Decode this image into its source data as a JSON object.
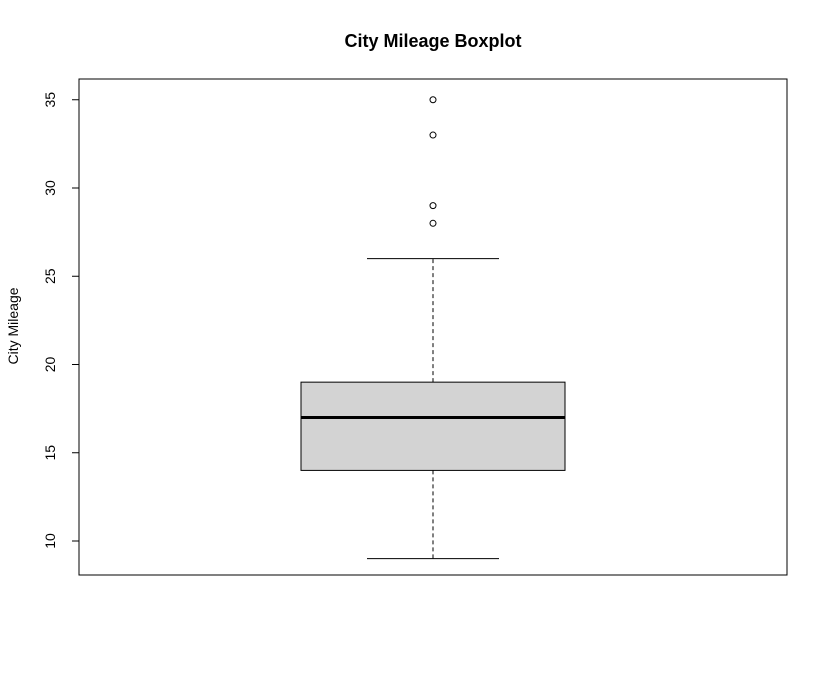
{
  "chart_data": {
    "type": "boxplot",
    "title": "City Mileage Boxplot",
    "xlabel": "",
    "ylabel": "City Mileage",
    "ylim": [
      8,
      36
    ],
    "yticks": [
      10,
      15,
      20,
      25,
      30,
      35
    ],
    "ytick_labels": [
      "10",
      "15",
      "20",
      "25",
      "30",
      "35"
    ],
    "grid": false,
    "colors": {
      "box_fill": "#d3d3d3",
      "stroke": "#000000"
    },
    "box": {
      "whisker_low": 9,
      "q1": 14,
      "median": 17,
      "q3": 19,
      "whisker_high": 26,
      "outliers": [
        28,
        29,
        33,
        35
      ]
    }
  }
}
